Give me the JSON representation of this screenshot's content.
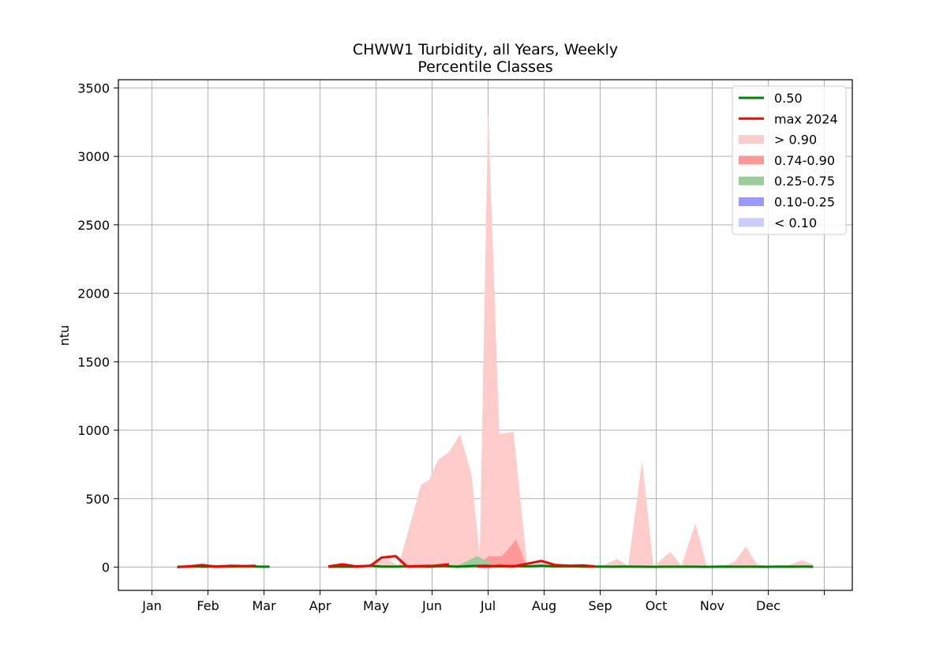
{
  "chart_data": {
    "type": "area",
    "title": "CHWW1 Turbidity, all Years, Weekly",
    "subtitle": "Percentile Classes",
    "xlabel": "",
    "ylabel": "ntu",
    "xlim": [
      -0.6,
      12.5
    ],
    "ylim": [
      -170,
      3560
    ],
    "grid": true,
    "legend_placement": "top-right",
    "x_tick_positions": [
      0,
      1,
      2,
      3,
      4,
      5,
      6,
      7,
      8,
      9,
      10,
      11,
      12
    ],
    "x_tick_labels": [
      "Jan",
      "Feb",
      "Mar",
      "Apr",
      "May",
      "Jun",
      "Jul",
      "Aug",
      "Sep",
      "Oct",
      "Nov",
      "Dec",
      ""
    ],
    "y_ticks": [
      0,
      500,
      1000,
      1500,
      2000,
      2500,
      3000,
      3500
    ],
    "bands": [
      {
        "name": "> 0.90",
        "color": "#ffcccc",
        "segments": [
          [
            [
              3.7,
              0
            ],
            [
              4.0,
              40
            ],
            [
              4.2,
              60
            ],
            [
              4.4,
              10
            ],
            [
              4.6,
              300
            ],
            [
              4.8,
              600
            ],
            [
              4.95,
              640
            ],
            [
              5.1,
              780
            ],
            [
              5.3,
              840
            ],
            [
              5.5,
              970
            ],
            [
              5.7,
              680
            ],
            [
              5.85,
              80
            ],
            [
              6.0,
              3330
            ],
            [
              6.2,
              970
            ],
            [
              6.45,
              990
            ],
            [
              6.7,
              0
            ]
          ],
          [
            [
              8.0,
              0
            ],
            [
              8.3,
              60
            ],
            [
              8.5,
              10
            ],
            [
              8.75,
              780
            ],
            [
              8.95,
              5
            ],
            [
              9.25,
              110
            ],
            [
              9.45,
              10
            ],
            [
              9.7,
              320
            ],
            [
              9.9,
              10
            ],
            [
              10.2,
              5
            ],
            [
              10.4,
              40
            ],
            [
              10.6,
              150
            ],
            [
              10.8,
              20
            ],
            [
              11.0,
              10
            ],
            [
              11.3,
              5
            ],
            [
              11.6,
              50
            ],
            [
              11.8,
              20
            ]
          ]
        ]
      },
      {
        "name": "0.74-0.90",
        "color": "#ff9999",
        "segments": [
          [
            [
              5.8,
              0
            ],
            [
              6.0,
              80
            ],
            [
              6.25,
              80
            ],
            [
              6.5,
              200
            ],
            [
              6.7,
              0
            ]
          ]
        ]
      },
      {
        "name": "0.25-0.75",
        "color": "#9ccc9c",
        "segments": [
          [
            [
              5.2,
              0
            ],
            [
              5.5,
              20
            ],
            [
              5.8,
              80
            ],
            [
              6.1,
              20
            ],
            [
              6.4,
              5
            ]
          ]
        ]
      },
      {
        "name": "0.10-0.25",
        "color": "#9999ff",
        "segments": []
      },
      {
        "name": "< 0.10",
        "color": "#ccccff",
        "segments": []
      }
    ],
    "series": [
      {
        "name": "0.50",
        "color": "#008000",
        "segments": [
          [
            [
              0.45,
              2
            ],
            [
              0.7,
              5
            ],
            [
              0.95,
              3
            ],
            [
              1.2,
              5
            ],
            [
              1.45,
              4
            ],
            [
              1.7,
              6
            ],
            [
              1.95,
              3
            ],
            [
              2.1,
              3
            ]
          ],
          [
            [
              3.15,
              2
            ],
            [
              3.4,
              4
            ],
            [
              3.65,
              3
            ],
            [
              3.9,
              10
            ],
            [
              4.1,
              4
            ],
            [
              4.4,
              4
            ],
            [
              4.7,
              5
            ],
            [
              4.95,
              3
            ],
            [
              5.2,
              8
            ],
            [
              5.45,
              3
            ],
            [
              5.7,
              8
            ],
            [
              5.95,
              10
            ],
            [
              6.2,
              5
            ],
            [
              6.45,
              8
            ],
            [
              6.7,
              6
            ],
            [
              6.95,
              10
            ],
            [
              7.2,
              5
            ],
            [
              7.45,
              6
            ],
            [
              7.7,
              4
            ],
            [
              7.95,
              4
            ],
            [
              8.2,
              3
            ],
            [
              8.45,
              4
            ],
            [
              8.7,
              3
            ],
            [
              8.95,
              2
            ],
            [
              9.2,
              3
            ],
            [
              9.45,
              3
            ],
            [
              9.7,
              3
            ],
            [
              9.95,
              2
            ],
            [
              10.2,
              4
            ],
            [
              10.45,
              3
            ],
            [
              10.7,
              3
            ],
            [
              10.95,
              2
            ],
            [
              11.2,
              4
            ],
            [
              11.45,
              3
            ],
            [
              11.7,
              4
            ],
            [
              11.8,
              2
            ]
          ]
        ]
      },
      {
        "name": "max 2024",
        "color": "#ff0000",
        "segments": [
          [
            [
              0.45,
              0
            ],
            [
              0.65,
              5
            ],
            [
              0.9,
              15
            ],
            [
              1.15,
              3
            ],
            [
              1.4,
              10
            ],
            [
              1.65,
              8
            ],
            [
              1.85,
              10
            ]
          ],
          [
            [
              3.15,
              5
            ],
            [
              3.4,
              20
            ],
            [
              3.65,
              5
            ],
            [
              3.9,
              10
            ],
            [
              4.1,
              70
            ],
            [
              4.35,
              80
            ],
            [
              4.55,
              5
            ],
            [
              4.8,
              8
            ],
            [
              5.05,
              10
            ],
            [
              5.3,
              20
            ]
          ],
          [
            [
              5.8,
              5
            ],
            [
              6.0,
              5
            ],
            [
              6.2,
              10
            ],
            [
              6.45,
              5
            ],
            [
              6.7,
              25
            ],
            [
              6.95,
              45
            ],
            [
              7.2,
              15
            ],
            [
              7.45,
              10
            ],
            [
              7.7,
              12
            ],
            [
              7.9,
              5
            ]
          ]
        ]
      }
    ]
  }
}
